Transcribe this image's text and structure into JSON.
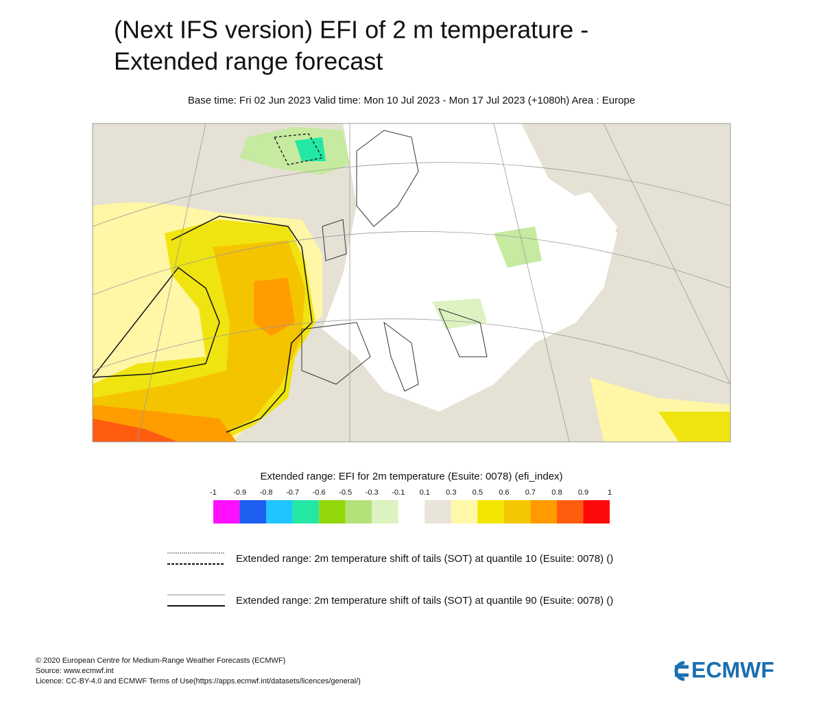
{
  "header": {
    "title": [
      "(Next IFS version) EFI of 2 m temperature -",
      "Extended range forecast"
    ],
    "subtitle": "Base time: Fri 02 Jun 2023 Valid time: Mon 10 Jul 2023 - Mon 17 Jul 2023 (+1080h) Area : Europe"
  },
  "legend": {
    "title": "Extended range: EFI for 2m temperature (Esuite: 0078) (efi_index)",
    "ticks": [
      "-1",
      "-0.9",
      "-0.8",
      "-0.7",
      "-0.6",
      "-0.5",
      "-0.3",
      "-0.1",
      "0.1",
      "0.3",
      "0.5",
      "0.6",
      "0.7",
      "0.8",
      "0.9",
      "1"
    ],
    "colors": [
      "#ff10ff",
      "#1e5ef0",
      "#20c4ff",
      "#22e8a4",
      "#92d808",
      "#b4e27a",
      "#dcf2c0",
      "#ffffff",
      "#e8e4da",
      "#fff8a8",
      "#f2e600",
      "#f4c800",
      "#ff9a00",
      "#ff5c10",
      "#ff0a0a"
    ],
    "lines": [
      {
        "label": "Extended range: 2m temperature shift of tails (SOT) at quantile 10 (Esuite: 0078) ()",
        "style": "dashed"
      },
      {
        "label": "Extended range: 2m temperature shift of tails (SOT) at quantile 90 (Esuite: 0078) ()",
        "style": "solid"
      }
    ]
  },
  "footer": {
    "lines": [
      "© 2020 European Centre for Medium-Range Weather Forecasts (ECMWF)",
      "Source: www.ecmwf.int",
      "Licence: CC-BY-4.0 and ECMWF Terms of Use(https://apps.ecmwf.int/datasets/licences/general/)"
    ],
    "logo": "ECMWF"
  }
}
